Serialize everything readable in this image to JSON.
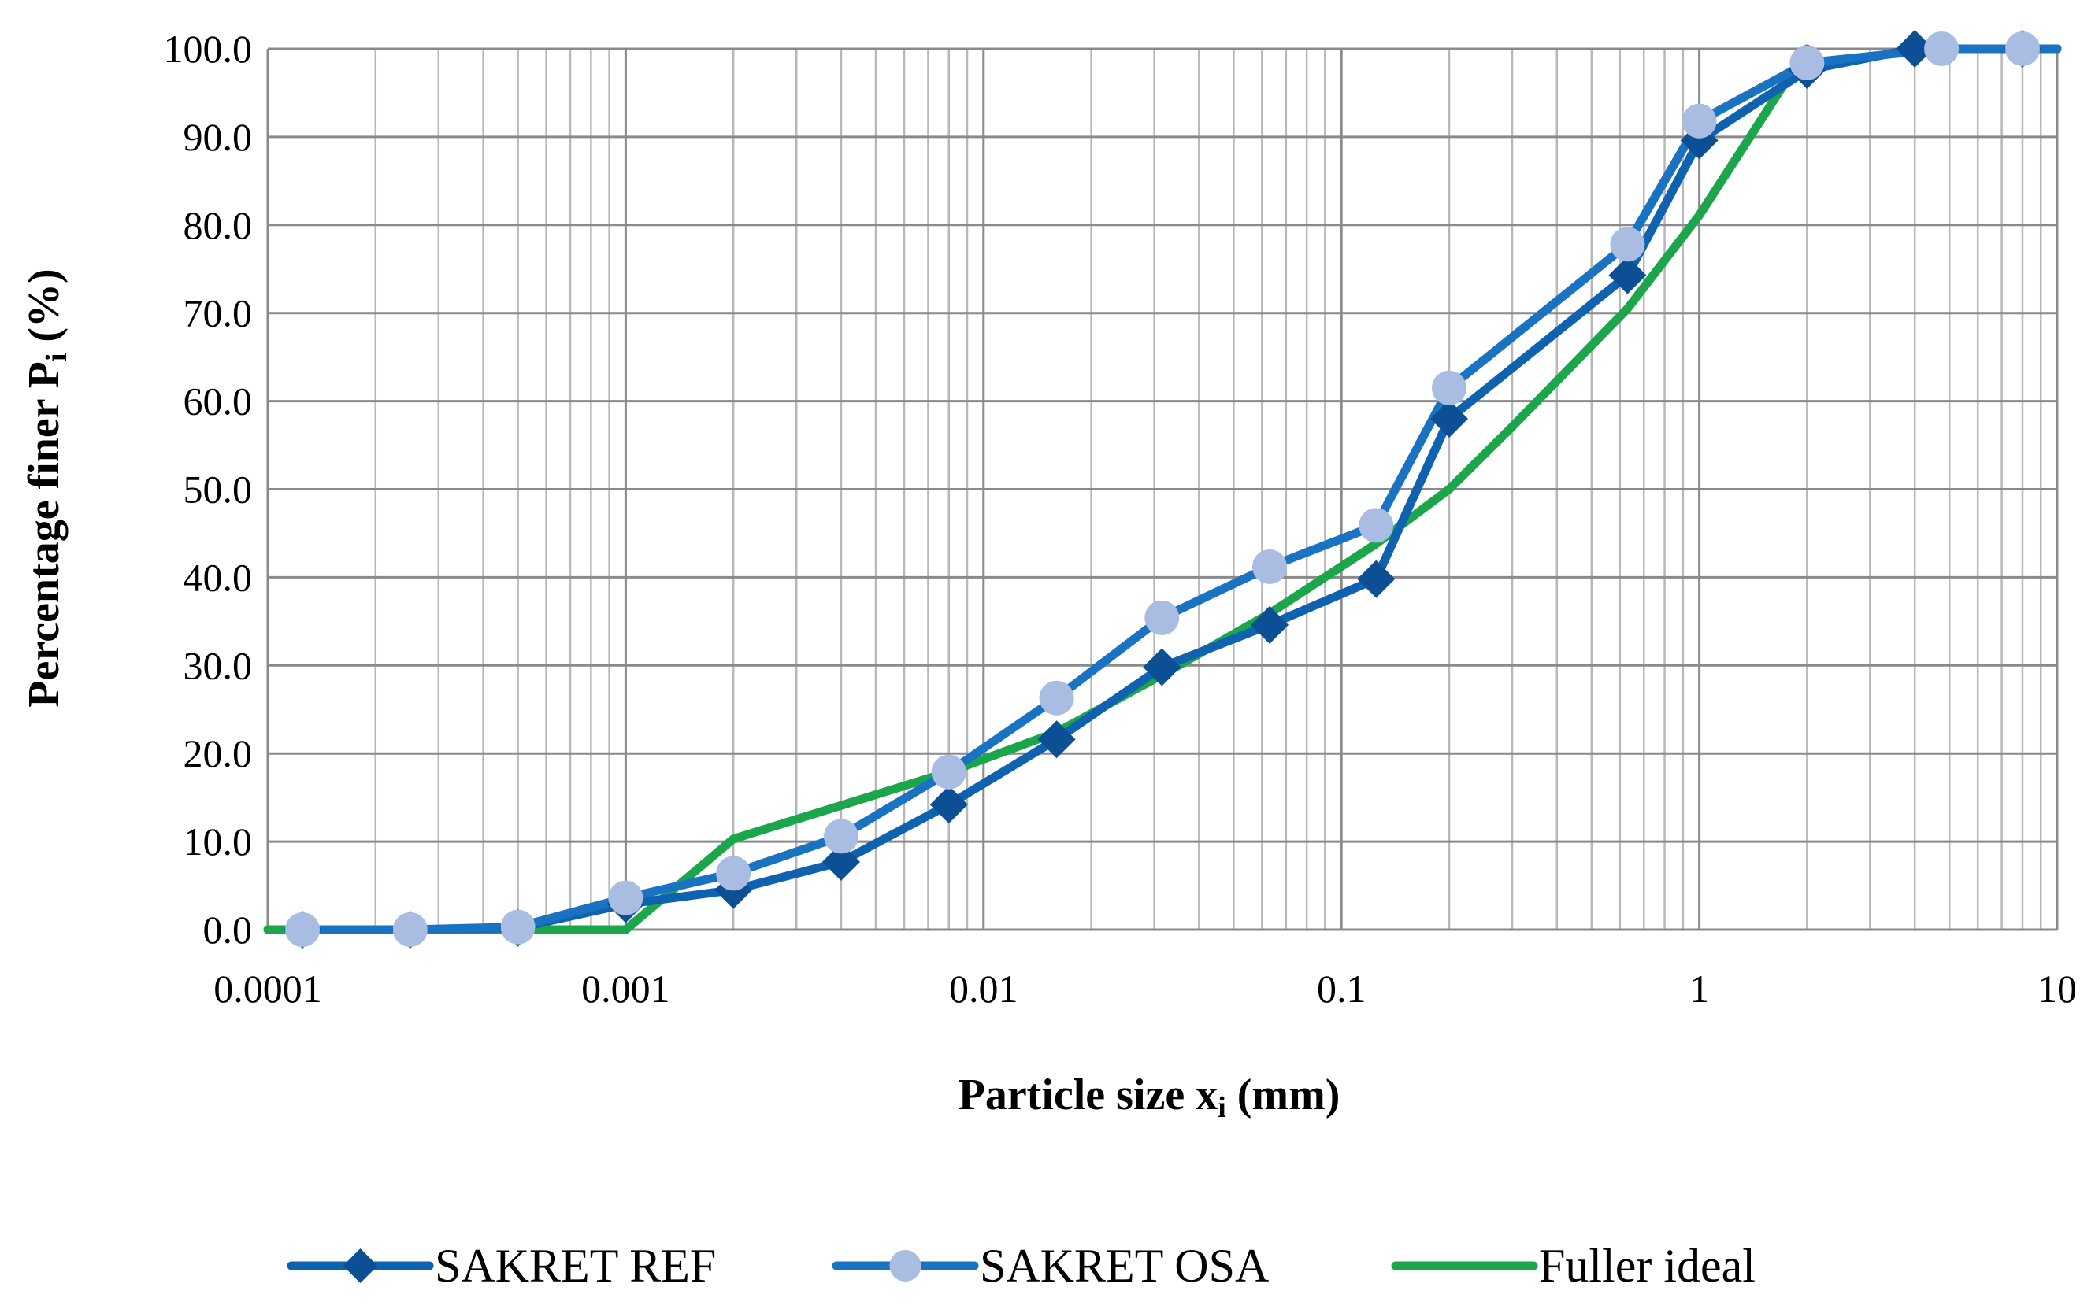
{
  "chart_data": {
    "type": "line",
    "x_scale": "log",
    "xlim": [
      0.0001,
      10
    ],
    "ylim": [
      0,
      100
    ],
    "grid": true,
    "legend_position": "bottom",
    "xlabel": {
      "main": "Particle size x",
      "sub": "i",
      "tail": " (mm)"
    },
    "ylabel": {
      "main": "Percentage finer P",
      "sub": "i",
      "tail": " (%)"
    },
    "x_ticks": [
      {
        "value": 0.0001,
        "label": "0.0001"
      },
      {
        "value": 0.001,
        "label": "0.001"
      },
      {
        "value": 0.01,
        "label": "0.01"
      },
      {
        "value": 0.1,
        "label": "0.1"
      },
      {
        "value": 1,
        "label": "1"
      },
      {
        "value": 10,
        "label": "10"
      }
    ],
    "y_ticks": [
      {
        "value": 0,
        "label": "0.0"
      },
      {
        "value": 10,
        "label": "10.0"
      },
      {
        "value": 20,
        "label": "20.0"
      },
      {
        "value": 30,
        "label": "30.0"
      },
      {
        "value": 40,
        "label": "40.0"
      },
      {
        "value": 50,
        "label": "50.0"
      },
      {
        "value": 60,
        "label": "60.0"
      },
      {
        "value": 70,
        "label": "70.0"
      },
      {
        "value": 80,
        "label": "80.0"
      },
      {
        "value": 90,
        "label": "90.0"
      },
      {
        "value": 100,
        "label": "100.0"
      }
    ],
    "series": [
      {
        "name": "SAKRET REF",
        "color": "#0f62b0",
        "marker": "diamond",
        "marker_color": "#0d4f94",
        "points": [
          [
            0.000125,
            0
          ],
          [
            0.00025,
            0
          ],
          [
            0.0005,
            0.2
          ],
          [
            0.001,
            2.9
          ],
          [
            0.002,
            4.5
          ],
          [
            0.004,
            7.7
          ],
          [
            0.008,
            14.2
          ],
          [
            0.016,
            21.6
          ],
          [
            0.0315,
            29.8
          ],
          [
            0.063,
            34.6
          ],
          [
            0.125,
            39.8
          ],
          [
            0.2,
            58.0
          ],
          [
            0.63,
            74.3
          ],
          [
            1.0,
            89.6
          ],
          [
            2.0,
            97.6
          ],
          [
            4.0,
            100.0
          ],
          [
            8.0,
            100.0
          ],
          [
            10.0,
            100.0
          ]
        ]
      },
      {
        "name": "SAKRET OSA",
        "color": "#1a73c2",
        "marker": "circle",
        "marker_color": "#a9bde3",
        "points": [
          [
            0.000125,
            0
          ],
          [
            0.00025,
            0
          ],
          [
            0.0005,
            0.3
          ],
          [
            0.001,
            3.6
          ],
          [
            0.002,
            6.4
          ],
          [
            0.004,
            10.6
          ],
          [
            0.008,
            17.9
          ],
          [
            0.016,
            26.3
          ],
          [
            0.0315,
            35.4
          ],
          [
            0.063,
            41.2
          ],
          [
            0.125,
            45.9
          ],
          [
            0.2,
            61.5
          ],
          [
            0.63,
            77.8
          ],
          [
            1.0,
            91.8
          ],
          [
            2.0,
            98.4
          ],
          [
            4.75,
            100.0
          ],
          [
            8.0,
            100.0
          ],
          [
            10.0,
            100.0
          ]
        ]
      },
      {
        "name": "Fuller ideal",
        "color": "#1ca64c",
        "marker": "none",
        "points": [
          [
            0.0001,
            0
          ],
          [
            0.00025,
            0
          ],
          [
            0.0005,
            0
          ],
          [
            0.001,
            0
          ],
          [
            0.002,
            10.3
          ],
          [
            0.004,
            14.1
          ],
          [
            0.008,
            17.9
          ],
          [
            0.016,
            22.4
          ],
          [
            0.0315,
            28.9
          ],
          [
            0.063,
            35.9
          ],
          [
            0.125,
            43.8
          ],
          [
            0.2,
            50.0
          ],
          [
            0.3,
            57.1
          ],
          [
            0.63,
            70.5
          ],
          [
            1.0,
            81.1
          ],
          [
            2.0,
            100.0
          ]
        ]
      }
    ]
  }
}
